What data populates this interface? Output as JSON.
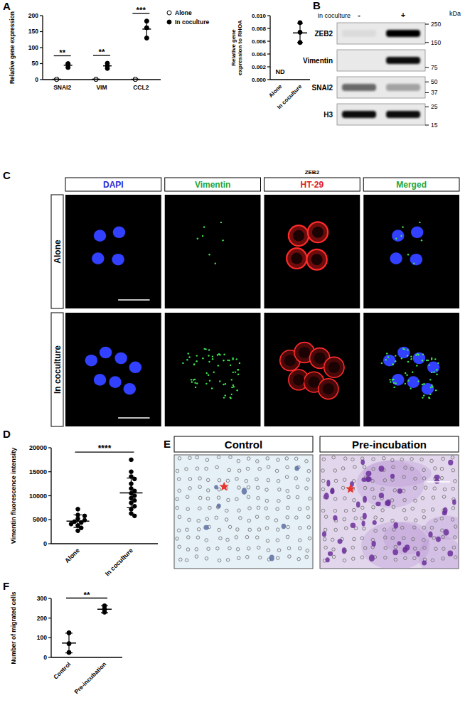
{
  "chart_data": [
    {
      "panel_label": "A",
      "type": "dot",
      "y_label": "Relative gene expression",
      "categories": [
        "SNAI2",
        "VIM",
        "CCL2"
      ],
      "series": [
        {
          "name": "Alone",
          "marker": "open-circle",
          "color": "#000000",
          "values": [
            1,
            1,
            1
          ],
          "error": [
            0.2,
            0.2,
            0.2
          ],
          "replicates": [
            [
              1,
              1,
              1
            ],
            [
              1,
              1,
              1
            ],
            [
              1,
              1,
              1
            ]
          ]
        },
        {
          "name": "In coculture",
          "marker": "filled-circle",
          "color": "#000000",
          "values": [
            45,
            43,
            158
          ],
          "error": [
            6,
            8,
            27
          ],
          "replicates": [
            [
              38,
              47,
              50
            ],
            [
              35,
              43,
              51
            ],
            [
              130,
              162,
              183
            ]
          ]
        }
      ],
      "significance": [
        "**",
        "**",
        "***"
      ],
      "ylim": [
        0,
        200
      ],
      "yticks": [
        0,
        50,
        100,
        150,
        200
      ],
      "legend": "upper-right"
    },
    {
      "type": "dot",
      "y_label": "Relative gene expression to RHOA",
      "categories": [
        "Alone",
        "In coculture"
      ],
      "marker": "filled-circle",
      "color": "#000000",
      "values": [
        null,
        0.0073
      ],
      "error": [
        null,
        0.0015
      ],
      "replicates": [
        [],
        [
          0.0089,
          0.0074,
          0.0058
        ]
      ],
      "annotations": [
        {
          "category": "Alone",
          "text": "ND"
        }
      ],
      "ylim": [
        0,
        0.01
      ],
      "yticks": [
        {
          "value": 0,
          "label": "0.000"
        },
        {
          "value": 0.002,
          "label": "0.002"
        },
        {
          "value": 0.004,
          "label": "0.004"
        },
        {
          "value": 0.006,
          "label": "0.006"
        },
        {
          "value": 0.008,
          "label": "0.008"
        },
        {
          "value": 0.01,
          "label": "0.010"
        }
      ]
    },
    {
      "panel_label": "D",
      "type": "dot",
      "y_label": "Vimentin fluorescence intensity",
      "categories": [
        "Alone",
        "In coculture"
      ],
      "marker": "filled-circle",
      "color": "#000000",
      "values": [
        4700,
        10600
      ],
      "error": [
        1300,
        3100
      ],
      "replicates": [
        [
          7200,
          6000,
          5800,
          5200,
          4900,
          4600,
          4400,
          4100,
          3800,
          3300,
          2700
        ],
        [
          17500,
          15000,
          14000,
          13500,
          12500,
          11500,
          11000,
          10500,
          10000,
          9500,
          9000,
          8500,
          7800,
          7200,
          6300,
          5800
        ]
      ],
      "significance": "****",
      "ylim": [
        0,
        20000
      ],
      "yticks": [
        0,
        5000,
        10000,
        15000,
        20000
      ]
    },
    {
      "panel_label": "F",
      "type": "dot",
      "y_label": "Number of migrated cells",
      "categories": [
        "Control",
        "Pre-incubation"
      ],
      "marker": "filled-circle",
      "color": "#000000",
      "values": [
        73,
        245
      ],
      "error": [
        50,
        18
      ],
      "replicates": [
        [
          125,
          70,
          25
        ],
        [
          262,
          245,
          230
        ]
      ],
      "significance": "**",
      "ylim": [
        0,
        300
      ],
      "yticks": [
        0,
        100,
        200,
        300
      ]
    }
  ],
  "western_blot": {
    "panel_label": "B",
    "header": "In coculture",
    "lanes": [
      "-",
      "+"
    ],
    "rows": [
      {
        "name": "ZEB2",
        "intensity": [
          0.06,
          1
        ]
      },
      {
        "name": "Vimentin",
        "intensity": [
          0,
          0.95
        ]
      },
      {
        "name": "SNAI2",
        "intensity": [
          0.55,
          0.3
        ]
      },
      {
        "name": "H3",
        "intensity": [
          0.95,
          0.95
        ]
      }
    ],
    "unit": "kDa",
    "markers": [
      250,
      150,
      75,
      50,
      37,
      25,
      15
    ]
  },
  "immunofluorescence": {
    "panel_label": "C",
    "stain_label": "ZEB2",
    "columns": [
      {
        "label": "DAPI",
        "color": "#2a2ad4"
      },
      {
        "label": "Vimentin",
        "color": "#22a63a"
      },
      {
        "label": "HT-29",
        "color": "#e02020"
      },
      {
        "label": "Merged",
        "color": "#22a63a"
      }
    ],
    "rows": [
      "Alone",
      "In coculture"
    ]
  },
  "migration_assay": {
    "panel_label": "E",
    "conditions": [
      "Control",
      "Pre-incubation"
    ]
  }
}
